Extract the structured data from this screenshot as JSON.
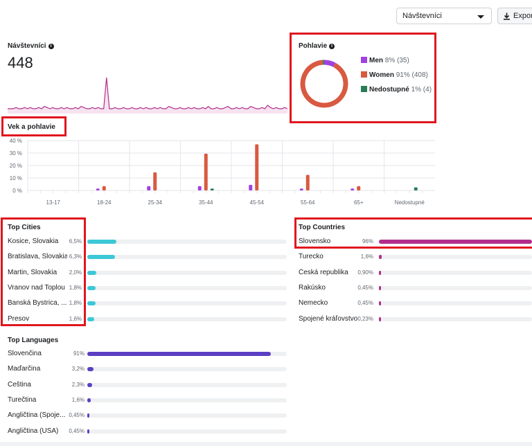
{
  "toolbar": {
    "metric_select": "Návštevníci",
    "export_label": "Export"
  },
  "visitors": {
    "title": "Návštevníci",
    "total": "448",
    "trend": [
      3,
      3,
      3,
      4,
      3,
      3,
      4,
      3,
      4,
      3,
      3,
      4,
      3,
      5,
      4,
      3,
      4,
      3,
      3,
      4,
      3,
      4,
      3,
      3,
      4,
      3,
      5,
      4,
      3,
      3,
      4,
      3,
      4,
      3,
      3,
      30,
      3,
      3,
      4,
      3,
      3,
      4,
      3,
      3,
      4,
      3,
      3,
      4,
      3,
      4,
      3,
      3,
      4,
      3,
      4,
      3,
      3,
      5,
      4,
      3,
      3,
      4,
      3,
      3,
      4,
      3,
      4,
      3,
      3,
      4,
      3,
      5,
      3,
      3,
      4,
      3,
      3,
      4,
      5,
      3,
      3,
      4,
      3,
      4,
      3,
      3,
      5,
      4,
      3,
      3,
      4,
      3,
      6,
      4,
      3,
      4,
      3,
      3,
      4,
      3
    ]
  },
  "gender": {
    "title": "Pohlavie",
    "segments": [
      {
        "label": "Men",
        "pct": "8%",
        "count": "(35)",
        "value": 35,
        "color": "#a041e0"
      },
      {
        "label": "Women",
        "pct": "91%",
        "count": "(408)",
        "value": 408,
        "color": "#d85a41"
      },
      {
        "label": "Nedostupné",
        "pct": "1%",
        "count": "(4)",
        "value": 4,
        "color": "#2a7d56"
      }
    ]
  },
  "chart_data": {
    "type": "bar",
    "title": "Vek a pohlavie",
    "categories": [
      "13-17",
      "18-24",
      "25-34",
      "35-44",
      "45-54",
      "55-64",
      "65+",
      "Nedostupné"
    ],
    "series": [
      {
        "name": "Men",
        "color": "#a041e0",
        "values": [
          0,
          1.5,
          3.5,
          3.5,
          4.5,
          1.5,
          1.5,
          0
        ]
      },
      {
        "name": "Women",
        "color": "#d85a41",
        "values": [
          0,
          3.5,
          14.5,
          29.5,
          37,
          12.5,
          3.5,
          0
        ]
      },
      {
        "name": "Nedostupné",
        "color": "#2a7d56",
        "values": [
          0,
          0,
          0,
          1.5,
          0,
          0,
          0,
          2.5
        ]
      }
    ],
    "yticks": [
      "40 %",
      "30 %",
      "20 %",
      "10 %",
      "0 %"
    ],
    "ylim": [
      0,
      40
    ],
    "grid": true
  },
  "cities": {
    "title": "Top Cities",
    "color": "#3cc8d6",
    "items": [
      {
        "label": "Kosice, Slovakia",
        "pct": "6,5%",
        "value": 6.5
      },
      {
        "label": "Bratislava, Slovakia",
        "pct": "6,3%",
        "value": 6.3
      },
      {
        "label": "Martin, Slovakia",
        "pct": "2,0%",
        "value": 2.0
      },
      {
        "label": "Vranov nad Toplou",
        "pct": "1,8%",
        "value": 1.8
      },
      {
        "label": "Banská Bystrica, ...",
        "pct": "1,8%",
        "value": 1.8
      },
      {
        "label": "Presov",
        "pct": "1,6%",
        "value": 1.6
      }
    ]
  },
  "countries": {
    "title": "Top Countries",
    "color": "#b22e8c",
    "items": [
      {
        "label": "Slovensko",
        "pct": "96%",
        "value": 96
      },
      {
        "label": "Turecko",
        "pct": "1,6%",
        "value": 1.6
      },
      {
        "label": "Česká republika",
        "pct": "0,90%",
        "value": 0.9
      },
      {
        "label": "Rakúsko",
        "pct": "0,45%",
        "value": 0.45
      },
      {
        "label": "Nemecko",
        "pct": "0,45%",
        "value": 0.45
      },
      {
        "label": "Spojené kráľovstvo",
        "pct": "0,23%",
        "value": 0.23
      }
    ]
  },
  "languages": {
    "title": "Top Languages",
    "color": "#5b3fc4",
    "items": [
      {
        "label": "Slovenčina",
        "pct": "91%",
        "value": 91
      },
      {
        "label": "Maďarčina",
        "pct": "3,2%",
        "value": 3.2
      },
      {
        "label": "Čeština",
        "pct": "2,3%",
        "value": 2.3
      },
      {
        "label": "Turečtina",
        "pct": "1,6%",
        "value": 1.6
      },
      {
        "label": "Angličtina (Spoje...",
        "pct": "0,45%",
        "value": 0.45
      },
      {
        "label": "Angličtina (USA)",
        "pct": "0,45%",
        "value": 0.45
      }
    ]
  }
}
